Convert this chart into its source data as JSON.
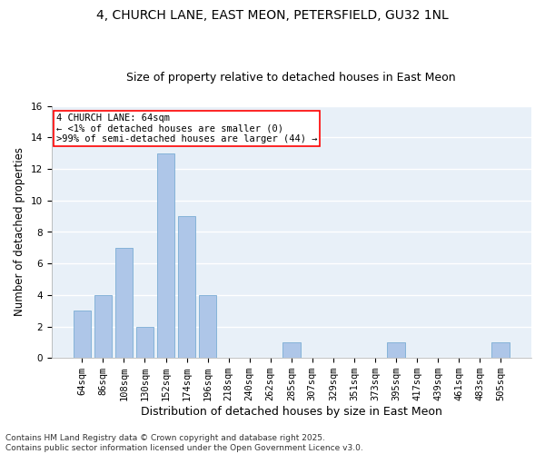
{
  "title": "4, CHURCH LANE, EAST MEON, PETERSFIELD, GU32 1NL",
  "subtitle": "Size of property relative to detached houses in East Meon",
  "xlabel": "Distribution of detached houses by size in East Meon",
  "ylabel": "Number of detached properties",
  "categories": [
    "64sqm",
    "86sqm",
    "108sqm",
    "130sqm",
    "152sqm",
    "174sqm",
    "196sqm",
    "218sqm",
    "240sqm",
    "262sqm",
    "285sqm",
    "307sqm",
    "329sqm",
    "351sqm",
    "373sqm",
    "395sqm",
    "417sqm",
    "439sqm",
    "461sqm",
    "483sqm",
    "505sqm"
  ],
  "values": [
    3,
    4,
    7,
    2,
    13,
    9,
    4,
    0,
    0,
    0,
    1,
    0,
    0,
    0,
    0,
    1,
    0,
    0,
    0,
    0,
    1
  ],
  "bar_color": "#aec6e8",
  "bar_edge_color": "#7aadd4",
  "annotation_text": "4 CHURCH LANE: 64sqm\n← <1% of detached houses are smaller (0)\n>99% of semi-detached houses are larger (44) →",
  "annotation_fontsize": 7.5,
  "ylim": [
    0,
    16
  ],
  "yticks": [
    0,
    2,
    4,
    6,
    8,
    10,
    12,
    14,
    16
  ],
  "background_color": "#e8f0f8",
  "grid_color": "#ffffff",
  "title_fontsize": 10,
  "subtitle_fontsize": 9,
  "xlabel_fontsize": 9,
  "ylabel_fontsize": 8.5,
  "tick_fontsize": 7.5,
  "footer_text": "Contains HM Land Registry data © Crown copyright and database right 2025.\nContains public sector information licensed under the Open Government Licence v3.0.",
  "footer_fontsize": 6.5
}
